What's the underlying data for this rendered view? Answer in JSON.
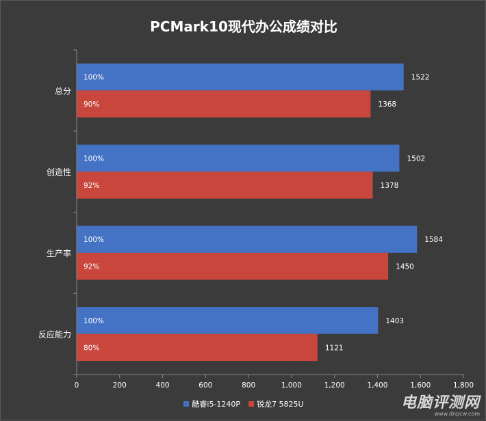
{
  "chart_data": {
    "type": "bar",
    "orientation": "horizontal",
    "title": "PCMark10现代办公成绩对比",
    "categories": [
      "总分",
      "创造性",
      "生产率",
      "反应能力"
    ],
    "series": [
      {
        "name": "酷睿i5-1240P",
        "color": "#4472c4",
        "values": [
          1522,
          1502,
          1584,
          1403
        ],
        "percent_labels": [
          "100%",
          "100%",
          "100%",
          "100%"
        ]
      },
      {
        "name": "锐龙7 5825U",
        "color": "#c9463d",
        "values": [
          1368,
          1378,
          1450,
          1121
        ],
        "percent_labels": [
          "90%",
          "92%",
          "92%",
          "80%"
        ]
      }
    ],
    "xlim": [
      0,
      1800
    ],
    "x_ticks": [
      0,
      200,
      400,
      600,
      800,
      1000,
      1200,
      1400,
      1600,
      1800
    ],
    "x_tick_labels": [
      "0",
      "200",
      "400",
      "600",
      "800",
      "1,000",
      "1,200",
      "1,400",
      "1,600",
      "1,800"
    ],
    "grid": false,
    "legend_position": "bottom"
  },
  "watermark": {
    "main": "电脑评测网",
    "sub": "www.dnpcw.com"
  }
}
